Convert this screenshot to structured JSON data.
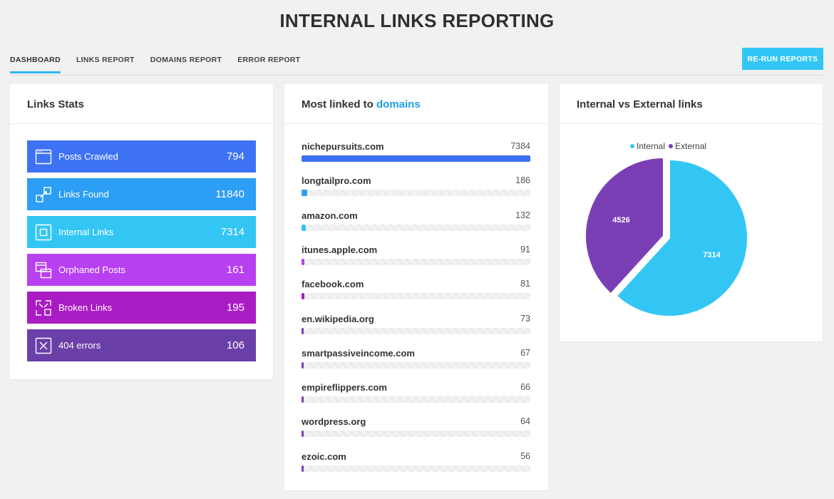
{
  "title": "INTERNAL LINKS REPORTING",
  "tabs": [
    {
      "label": "DASHBOARD",
      "active": true
    },
    {
      "label": "LINKS REPORT",
      "active": false
    },
    {
      "label": "DOMAINS REPORT",
      "active": false
    },
    {
      "label": "ERROR REPORT",
      "active": false
    }
  ],
  "rerun_label": "RE-RUN REPORTS",
  "stats": {
    "title": "Links Stats",
    "items": [
      {
        "label": "Posts Crawled",
        "value": "794",
        "color": "#3d72f5",
        "icon": "browser-window-icon"
      },
      {
        "label": "Links Found",
        "value": "11840",
        "color": "#2d9ef5",
        "icon": "link-arrows-icon"
      },
      {
        "label": "Internal Links",
        "value": "7314",
        "color": "#33c6f5",
        "icon": "internal-square-icon"
      },
      {
        "label": "Orphaned Posts",
        "value": "161",
        "color": "#b840f0",
        "icon": "stacked-windows-icon"
      },
      {
        "label": "Broken Links",
        "value": "195",
        "color": "#a91cc4",
        "icon": "broken-link-icon"
      },
      {
        "label": "404 errors",
        "value": "106",
        "color": "#6b3fa8",
        "icon": "x-box-icon"
      }
    ]
  },
  "domains": {
    "title_prefix": "Most linked to ",
    "title_accent": "domains",
    "items": [
      {
        "name": "nichepursuits.com",
        "value": 7384,
        "color": "#3d6ff2"
      },
      {
        "name": "longtailpro.com",
        "value": 186,
        "color": "#2d9ef5"
      },
      {
        "name": "amazon.com",
        "value": 132,
        "color": "#33c6f5"
      },
      {
        "name": "itunes.apple.com",
        "value": 91,
        "color": "#b840f0"
      },
      {
        "name": "facebook.com",
        "value": 81,
        "color": "#a91cc4"
      },
      {
        "name": "en.wikipedia.org",
        "value": 73,
        "color": "#7b3fb5"
      },
      {
        "name": "smartpassiveincome.com",
        "value": 67,
        "color": "#7b3fb5"
      },
      {
        "name": "empireflippers.com",
        "value": 66,
        "color": "#7b3fb5"
      },
      {
        "name": "wordpress.org",
        "value": 64,
        "color": "#7b3fb5"
      },
      {
        "name": "ezoic.com",
        "value": 56,
        "color": "#7b3fb5"
      }
    ]
  },
  "pie": {
    "title": "Internal vs External links"
  },
  "chart_data": {
    "type": "pie",
    "title": "Internal vs External links",
    "legend_position": "top",
    "series": [
      {
        "name": "Internal",
        "value": 7314,
        "color": "#33c6f5"
      },
      {
        "name": "External",
        "value": 4526,
        "color": "#7b3fb5"
      }
    ]
  }
}
